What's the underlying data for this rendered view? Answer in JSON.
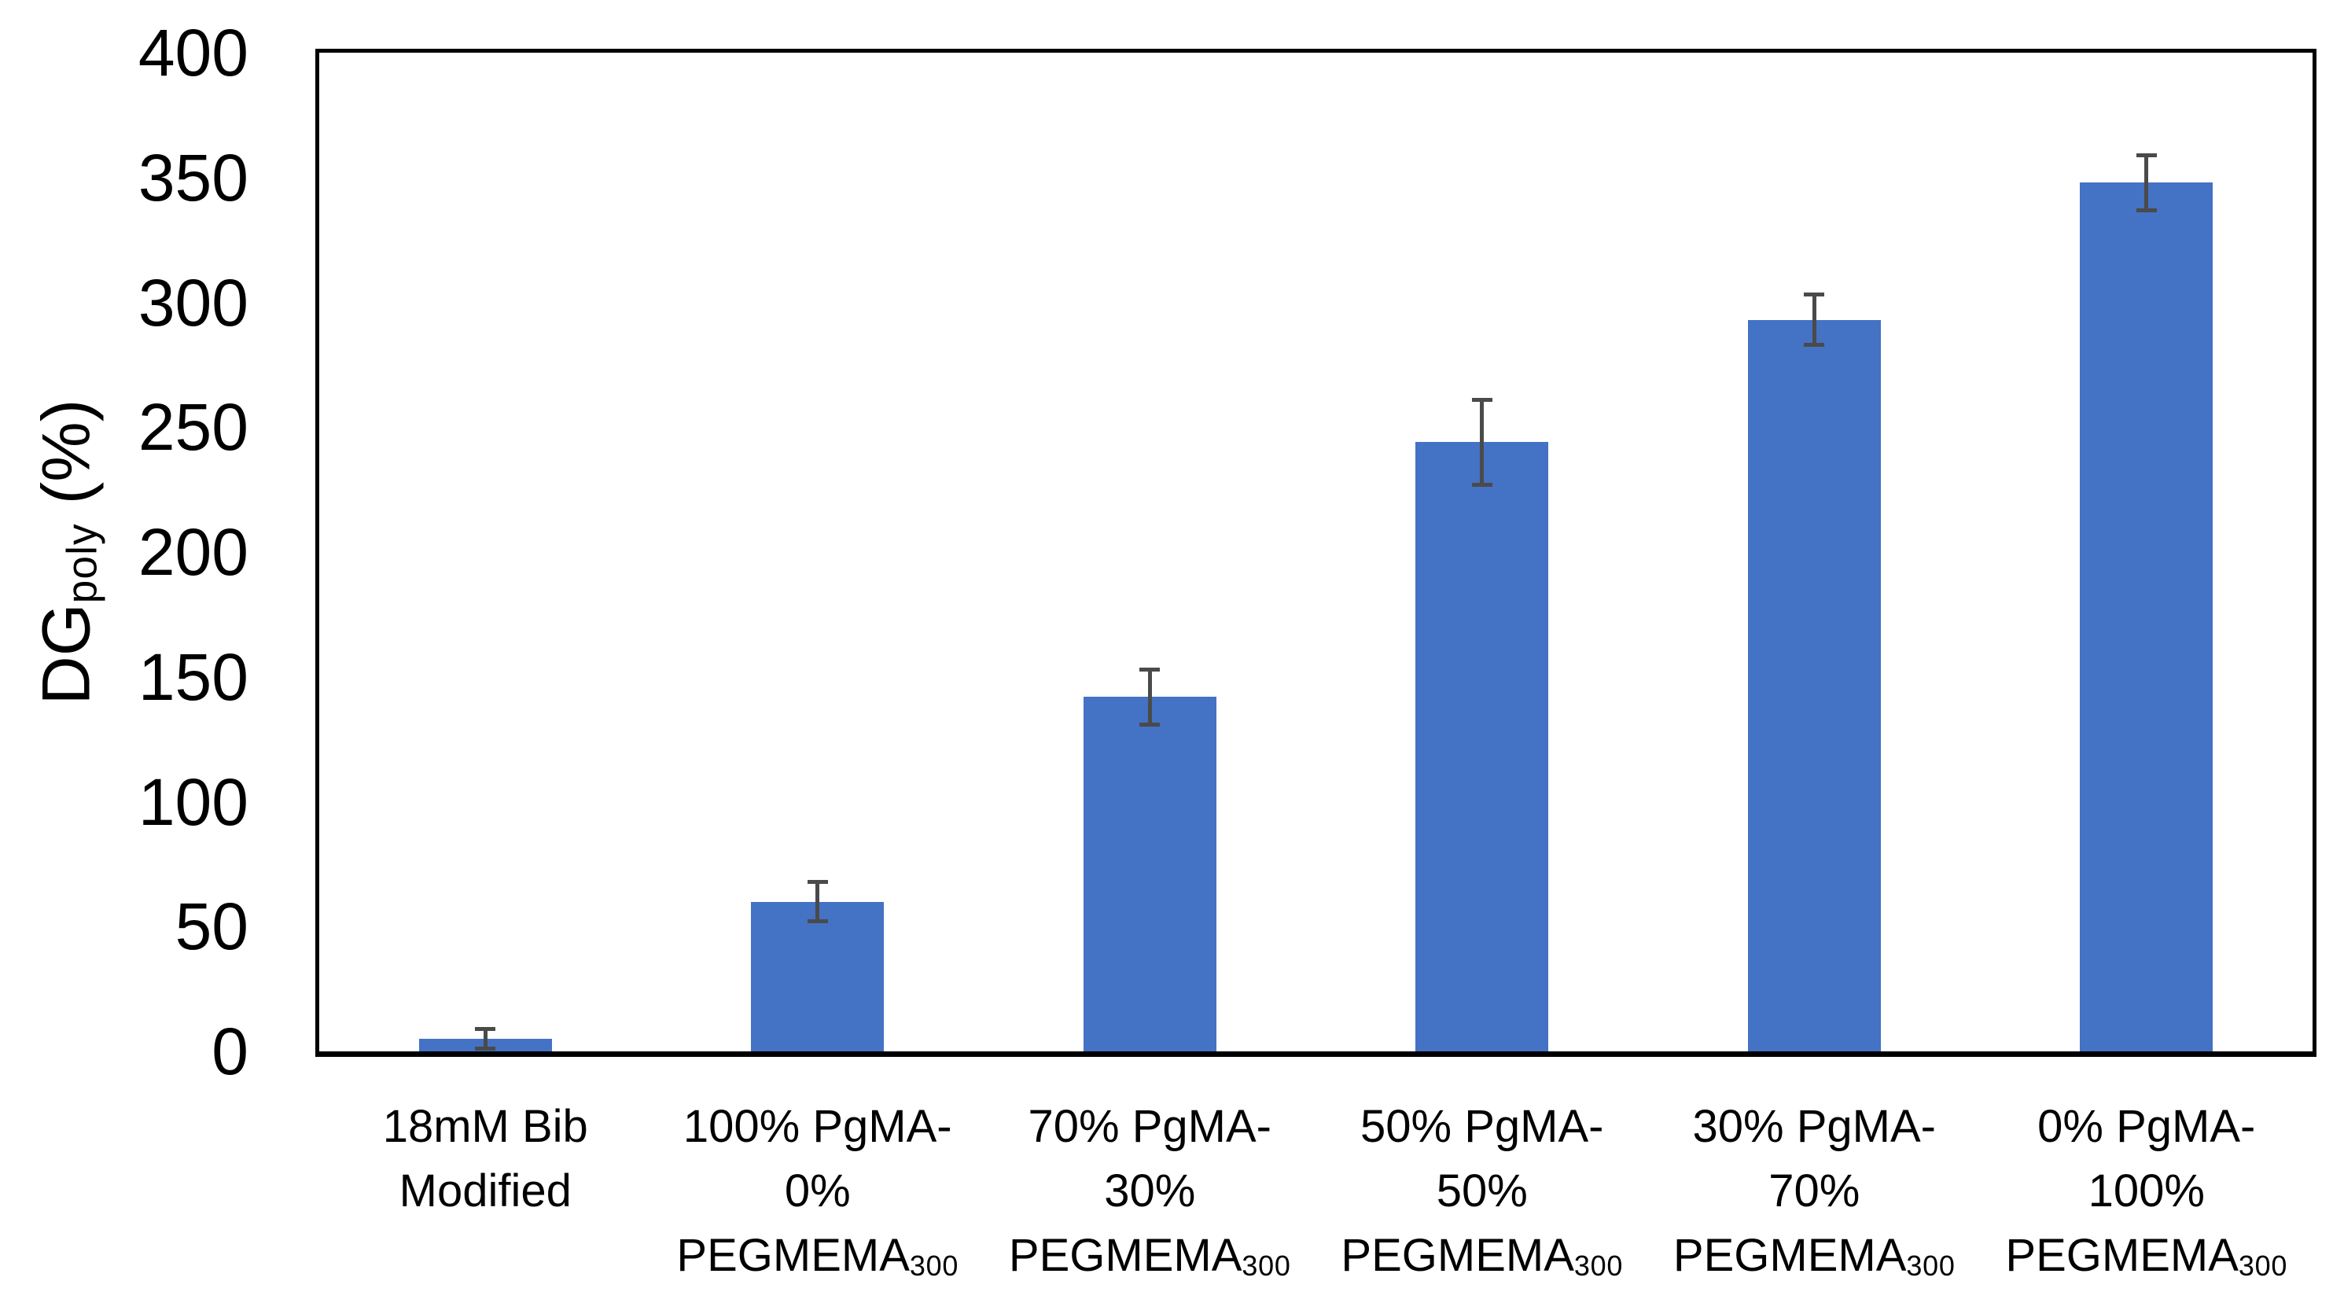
{
  "chart_data": {
    "type": "bar",
    "title": "",
    "ylabel": {
      "main": "DG",
      "sub": "poly",
      "unit": " (%)"
    },
    "xlabel": "",
    "ylim": [
      0,
      400
    ],
    "yticks": [
      0,
      50,
      100,
      150,
      200,
      250,
      300,
      350,
      400
    ],
    "grid": false,
    "legend": null,
    "bar_color": "#4472C4",
    "error_color": "#4a4a4a",
    "axis_color": "#000000",
    "categories": [
      {
        "lines": [
          {
            "text": "18mM Bib"
          },
          {
            "text": "Modified"
          }
        ]
      },
      {
        "lines": [
          {
            "text": "100% PgMA-"
          },
          {
            "text": "0%"
          },
          {
            "text": "PEGMEMA",
            "sub": "300"
          }
        ]
      },
      {
        "lines": [
          {
            "text": "70% PgMA-"
          },
          {
            "text": "30%"
          },
          {
            "text": "PEGMEMA",
            "sub": "300"
          }
        ]
      },
      {
        "lines": [
          {
            "text": "50% PgMA-"
          },
          {
            "text": "50%"
          },
          {
            "text": "PEGMEMA",
            "sub": "300"
          }
        ]
      },
      {
        "lines": [
          {
            "text": "30% PgMA-"
          },
          {
            "text": "70%"
          },
          {
            "text": "PEGMEMA",
            "sub": "300"
          }
        ]
      },
      {
        "lines": [
          {
            "text": "0% PgMA-"
          },
          {
            "text": "100%"
          },
          {
            "text": "PEGMEMA",
            "sub": "300"
          }
        ]
      }
    ],
    "values": [
      5,
      60,
      142,
      244,
      293,
      348
    ],
    "errors": [
      4,
      8,
      11,
      17,
      10,
      11
    ]
  }
}
